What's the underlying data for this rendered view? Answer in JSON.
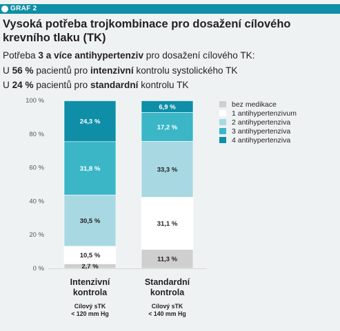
{
  "badge": {
    "label": "GRAF 2"
  },
  "title": "Vysoká potřeba trojkombinace pro dosažení cílového krevního tlaku (TK)",
  "subtitle_lines": [
    {
      "pre": "Potřeba ",
      "bold": "3 a více antihypertenziv",
      "post": " pro dosažení cílového TK:"
    },
    {
      "pre": "U ",
      "bold": "56 %",
      "mid": " pacientů pro ",
      "bold2": "intenzivní",
      "post": " kontrolu systolického TK"
    },
    {
      "pre": "U ",
      "bold": "24 %",
      "mid": " pacientů pro ",
      "bold2": "standardní",
      "post": " kontrolu TK"
    }
  ],
  "colors": {
    "background": "#eef2f3",
    "badge": "#0e8ea7",
    "bez_medikace": "#cfcfcf",
    "one": "#ffffff",
    "two": "#a8d8e2",
    "three": "#3ab6c7",
    "four": "#0e8ea7"
  },
  "chart_data": {
    "type": "bar",
    "stacked": true,
    "ylim": [
      0,
      100
    ],
    "yticks": [
      "0 %",
      "20 %",
      "40 %",
      "60 %",
      "80 %",
      "100 %"
    ],
    "ytick_values": [
      0,
      20,
      40,
      60,
      80,
      100
    ],
    "grid": false,
    "legend_position": "top-right",
    "categories": [
      {
        "name": "Intenzivní kontrola",
        "name_lines": [
          "Intenzivní",
          "kontrola"
        ],
        "target_lines": [
          "Cílový sTK",
          "< 120 mm Hg"
        ]
      },
      {
        "name": "Standardní kontrola",
        "name_lines": [
          "Standardní",
          "kontrola"
        ],
        "target_lines": [
          "Cílový sTK",
          "< 140 mm Hg"
        ]
      }
    ],
    "series": [
      {
        "name": "bez medikace",
        "color": "#cfcfcf",
        "values": [
          2.7,
          11.3
        ],
        "labels": [
          "2,7 %",
          "11,3 %"
        ]
      },
      {
        "name": "1 antihypertenzivum",
        "color": "#ffffff",
        "values": [
          10.5,
          31.1
        ],
        "labels": [
          "10,5 %",
          "31,1 %"
        ]
      },
      {
        "name": "2 antihypertenziva",
        "color": "#a8d8e2",
        "values": [
          30.5,
          33.3
        ],
        "labels": [
          "30,5 %",
          "33,3 %"
        ]
      },
      {
        "name": "3 antihypertenziva",
        "color": "#3ab6c7",
        "values": [
          31.8,
          17.2
        ],
        "labels": [
          "31,8 %",
          "17,2 %"
        ]
      },
      {
        "name": "4 antihypertenziva",
        "color": "#0e8ea7",
        "values": [
          24.3,
          6.9
        ],
        "labels": [
          "24,3 %",
          "6,9 %"
        ]
      }
    ]
  }
}
